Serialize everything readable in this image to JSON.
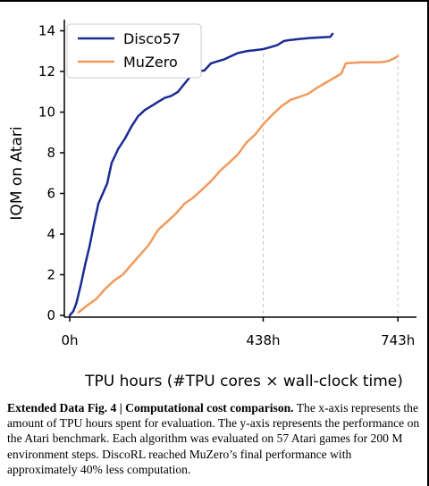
{
  "chart_data": {
    "type": "line",
    "xlabel": "TPU hours (#TPU cores × wall-clock time)",
    "ylabel": "IQM on Atari",
    "xlim": [
      0,
      800
    ],
    "ylim": [
      0,
      14
    ],
    "x_ticks": [
      {
        "value": 0,
        "label": "0h"
      },
      {
        "value": 438,
        "label": "438h"
      },
      {
        "value": 743,
        "label": "743h"
      }
    ],
    "y_ticks": [
      0,
      2,
      4,
      6,
      8,
      10,
      12,
      14
    ],
    "reference_lines_x": [
      438,
      743
    ],
    "legend_position": "top-left",
    "series": [
      {
        "name": "Disco57",
        "color": "#1a2b94",
        "points": [
          [
            0,
            0
          ],
          [
            8,
            0.2
          ],
          [
            15,
            0.6
          ],
          [
            25,
            1.5
          ],
          [
            35,
            2.5
          ],
          [
            45,
            3.4
          ],
          [
            55,
            4.5
          ],
          [
            65,
            5.5
          ],
          [
            75,
            6.0
          ],
          [
            85,
            6.5
          ],
          [
            95,
            7.5
          ],
          [
            110,
            8.2
          ],
          [
            125,
            8.7
          ],
          [
            140,
            9.3
          ],
          [
            155,
            9.8
          ],
          [
            170,
            10.1
          ],
          [
            185,
            10.3
          ],
          [
            200,
            10.5
          ],
          [
            215,
            10.7
          ],
          [
            230,
            10.8
          ],
          [
            245,
            11.0
          ],
          [
            260,
            11.4
          ],
          [
            275,
            11.8
          ],
          [
            290,
            12.0
          ],
          [
            305,
            12.05
          ],
          [
            320,
            12.4
          ],
          [
            335,
            12.5
          ],
          [
            350,
            12.6
          ],
          [
            365,
            12.75
          ],
          [
            380,
            12.9
          ],
          [
            400,
            13.0
          ],
          [
            420,
            13.05
          ],
          [
            438,
            13.1
          ],
          [
            455,
            13.2
          ],
          [
            470,
            13.3
          ],
          [
            485,
            13.5
          ],
          [
            500,
            13.55
          ],
          [
            520,
            13.6
          ],
          [
            545,
            13.65
          ],
          [
            590,
            13.7
          ],
          [
            595,
            13.85
          ]
        ]
      },
      {
        "name": "MuZero",
        "color": "#f39a5b",
        "points": [
          [
            20,
            0.15
          ],
          [
            40,
            0.5
          ],
          [
            60,
            0.8
          ],
          [
            80,
            1.3
          ],
          [
            100,
            1.7
          ],
          [
            120,
            2.0
          ],
          [
            140,
            2.5
          ],
          [
            160,
            3.0
          ],
          [
            180,
            3.5
          ],
          [
            200,
            4.2
          ],
          [
            220,
            4.6
          ],
          [
            240,
            5.0
          ],
          [
            260,
            5.5
          ],
          [
            280,
            5.8
          ],
          [
            300,
            6.2
          ],
          [
            320,
            6.6
          ],
          [
            340,
            7.1
          ],
          [
            360,
            7.5
          ],
          [
            380,
            7.9
          ],
          [
            400,
            8.5
          ],
          [
            420,
            8.9
          ],
          [
            438,
            9.4
          ],
          [
            460,
            9.9
          ],
          [
            480,
            10.3
          ],
          [
            500,
            10.6
          ],
          [
            520,
            10.75
          ],
          [
            540,
            10.9
          ],
          [
            560,
            11.2
          ],
          [
            580,
            11.45
          ],
          [
            600,
            11.7
          ],
          [
            615,
            11.9
          ],
          [
            625,
            12.4
          ],
          [
            660,
            12.45
          ],
          [
            700,
            12.45
          ],
          [
            720,
            12.5
          ],
          [
            735,
            12.65
          ],
          [
            743,
            12.75
          ]
        ]
      }
    ]
  },
  "caption": {
    "label": "Extended Data Fig. 4 |",
    "title": "Computational cost comparison.",
    "body": " The x-axis represents the amount of TPU hours spent for evaluation. The y-axis represents the performance on the Atari benchmark. Each algorithm was evaluated on 57 Atari games for 200 M environment steps. DiscoRL reached MuZero’s final performance with approximately 40% less computation."
  }
}
